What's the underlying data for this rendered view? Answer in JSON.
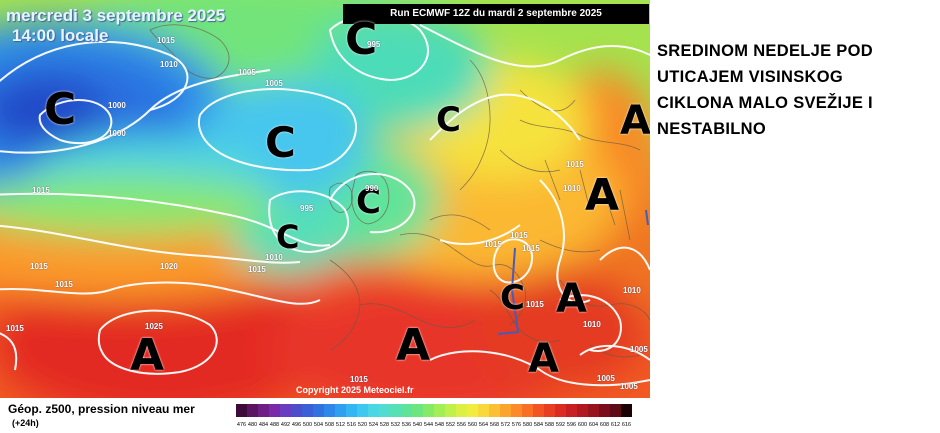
{
  "map": {
    "date_label": "mercredi 3 septembre 2025",
    "time_label": "14:00 locale",
    "run_banner": "Run ECMWF 12Z du mardi 2 septembre 2025",
    "copyright": "Copyright 2025 Meteociel.fr",
    "symbols": {
      "low": "C",
      "high": "A"
    },
    "isobar_labels": [
      "1015",
      "1010",
      "995",
      "1005",
      "1005",
      "1000",
      "1000",
      "995",
      "1015",
      "990",
      "1015",
      "1010",
      "1015",
      "1020",
      "1015",
      "1025",
      "1015",
      "1015",
      "1015",
      "1015",
      "1015",
      "1015",
      "1010",
      "1010",
      "1005",
      "1005",
      "1005",
      "1010",
      "1015"
    ]
  },
  "headline": {
    "lines": [
      "SREDINOM NEDELJE POD",
      "UTICAJEM VISINSKOG",
      "CIKLONA MALO SVEŽIJE I",
      "NESTABILNO"
    ]
  },
  "legend": {
    "title": "Géop. z500, pression niveau mer",
    "subtitle": "(+24h)",
    "scale_values": [
      "476",
      "480",
      "484",
      "488",
      "492",
      "496",
      "500",
      "504",
      "508",
      "512",
      "516",
      "520",
      "524",
      "528",
      "532",
      "536",
      "540",
      "544",
      "548",
      "552",
      "556",
      "560",
      "564",
      "568",
      "572",
      "576",
      "580",
      "584",
      "588",
      "592",
      "596",
      "600",
      "604",
      "608",
      "612",
      "616"
    ],
    "scale_colors": [
      "#3d0a3a",
      "#5a1461",
      "#6e1e85",
      "#7a2aa8",
      "#6a3dc0",
      "#4d4ec9",
      "#3a5fd6",
      "#2f72e0",
      "#2e88ea",
      "#2fa0f0",
      "#33b6f2",
      "#3ec8f0",
      "#4ad6e4",
      "#52dccf",
      "#56e0b5",
      "#5ee39a",
      "#6ee680",
      "#86ea66",
      "#a2ee55",
      "#c0f04a",
      "#dcf044",
      "#f2ec40",
      "#f8d83a",
      "#fbc033",
      "#fca52d",
      "#fc8a28",
      "#f96f24",
      "#f25522",
      "#e83e22",
      "#db2c22",
      "#c81f22",
      "#b21820",
      "#97131e",
      "#7a0f1b",
      "#5e0b17",
      "#1a0205"
    ]
  },
  "colors": {
    "accent_text": "#000000",
    "map_deep_low": "#1f5fd6",
    "map_high": "#e8322a"
  }
}
